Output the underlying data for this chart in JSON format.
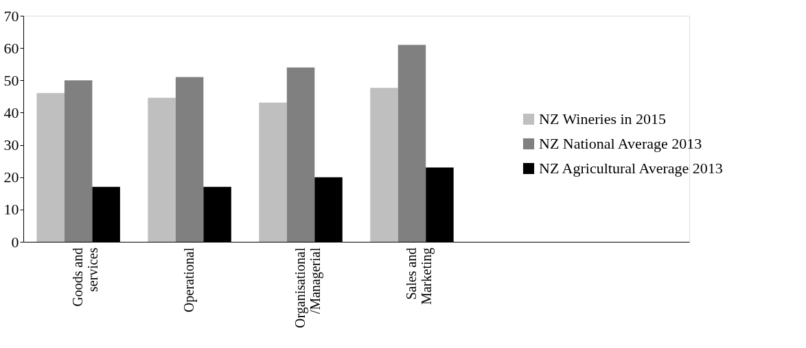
{
  "chart_data": {
    "type": "bar",
    "categories": [
      "Goods and services",
      "Operational",
      "Organisational/Managerial",
      "Sales and Marketing",
      null,
      null
    ],
    "series": [
      {
        "name": "NZ Wineries in 2015",
        "color": "#bfbfbf",
        "values": [
          46.1,
          44.6,
          43.1,
          47.7,
          null,
          null
        ]
      },
      {
        "name": "NZ National Average 2013",
        "color": "#808080",
        "values": [
          50,
          51,
          54,
          61,
          null,
          null
        ]
      },
      {
        "name": "NZ Agricultural Average 2013",
        "color": "#000000",
        "values": [
          17,
          17,
          20,
          23,
          null,
          null
        ]
      }
    ],
    "ylim": [
      0,
      70
    ],
    "yticks": [
      0,
      10,
      20,
      30,
      40,
      50,
      60,
      70
    ],
    "grid": false,
    "legend": "right"
  }
}
